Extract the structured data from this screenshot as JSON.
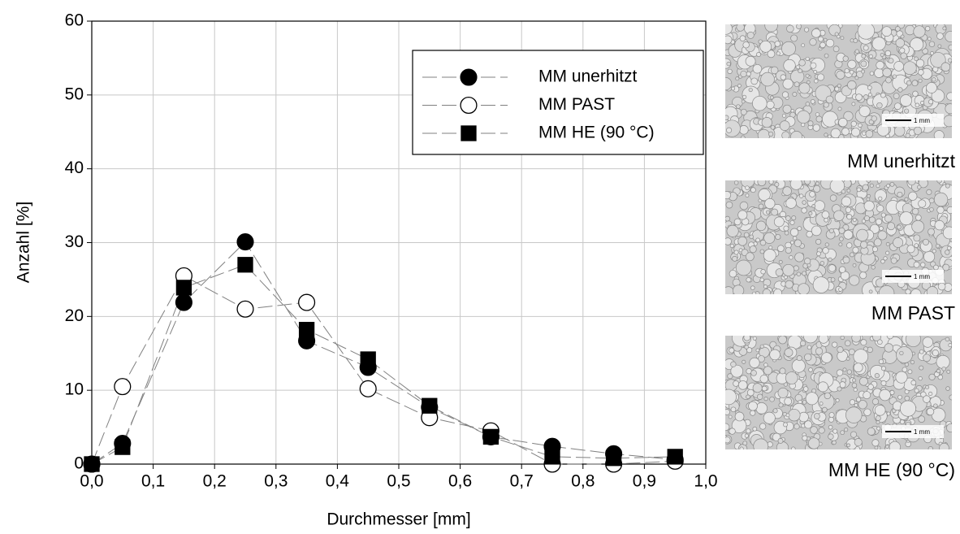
{
  "chart_data": {
    "type": "line",
    "xlabel": "Durchmesser [mm]",
    "ylabel": "Anzahl [%]",
    "x": [
      0,
      0.05,
      0.15,
      0.25,
      0.35,
      0.45,
      0.55,
      0.65,
      0.75,
      0.85,
      0.95
    ],
    "series": [
      {
        "name": "MM unerhitzt",
        "color": "#000000",
        "marker": "circle",
        "fill": "#000000",
        "values": [
          0,
          2.8,
          21.9,
          30.1,
          16.7,
          13.1,
          7.7,
          3.7,
          2.4,
          1.4,
          0.6
        ]
      },
      {
        "name": "MM PAST",
        "color": "#000000",
        "marker": "circle",
        "fill": "#ffffff",
        "values": [
          0,
          10.5,
          25.5,
          21,
          21.9,
          10.2,
          6.3,
          4.5,
          0,
          0,
          0.4
        ]
      },
      {
        "name": "MM HE (90 °C)",
        "color": "#000000",
        "marker": "square",
        "fill": "#000000",
        "values": [
          0,
          2.3,
          23.9,
          27,
          18.2,
          14.2,
          7.9,
          3.7,
          1.0,
          0.8,
          1.0
        ]
      }
    ],
    "xlim": [
      0,
      1
    ],
    "ylim": [
      0,
      60
    ],
    "xticks": [
      {
        "value": 0,
        "label": "0,0"
      },
      {
        "value": 0.1,
        "label": "0,1"
      },
      {
        "value": 0.2,
        "label": "0,2"
      },
      {
        "value": 0.3,
        "label": "0,3"
      },
      {
        "value": 0.4,
        "label": "0,4"
      },
      {
        "value": 0.5,
        "label": "0,5"
      },
      {
        "value": 0.6,
        "label": "0,6"
      },
      {
        "value": 0.7,
        "label": "0,7"
      },
      {
        "value": 0.8,
        "label": "0,8"
      },
      {
        "value": 0.9,
        "label": "0,9"
      },
      {
        "value": 1,
        "label": "1,0"
      }
    ],
    "yticks": [
      0,
      10,
      20,
      30,
      40,
      50,
      60
    ],
    "grid": true,
    "legend": "upper right"
  },
  "images": [
    {
      "caption": "MM unerhitzt",
      "scale_bar": "1 mm"
    },
    {
      "caption": "MM PAST",
      "scale_bar": "1 mm"
    },
    {
      "caption": "MM HE (90 °C)",
      "scale_bar": "1 mm"
    }
  ]
}
